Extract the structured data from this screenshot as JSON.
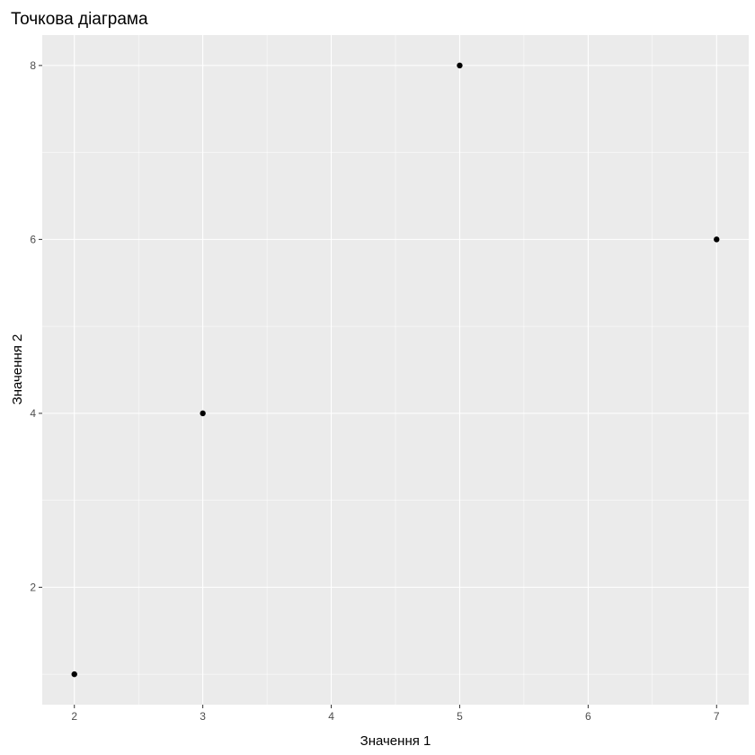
{
  "chart_data": {
    "type": "scatter",
    "title": "Точкова діаграма",
    "xlabel": "Значення 1",
    "ylabel": "Значення 2",
    "x": [
      2,
      3,
      5,
      7
    ],
    "y": [
      1,
      4,
      8,
      6
    ],
    "xlim": [
      1.75,
      7.25
    ],
    "ylim": [
      0.65,
      8.35
    ],
    "xticks": [
      2,
      3,
      4,
      5,
      6,
      7
    ],
    "yticks": [
      2,
      4,
      6,
      8
    ],
    "xminor": [
      2.5,
      3.5,
      4.5,
      5.5,
      6.5
    ],
    "yminor": [
      1,
      3,
      5,
      7
    ],
    "grid": true,
    "colors": {
      "panel": "#ebebeb",
      "grid": "#ffffff",
      "point": "#000000",
      "tick_text": "#4d4d4d"
    }
  }
}
